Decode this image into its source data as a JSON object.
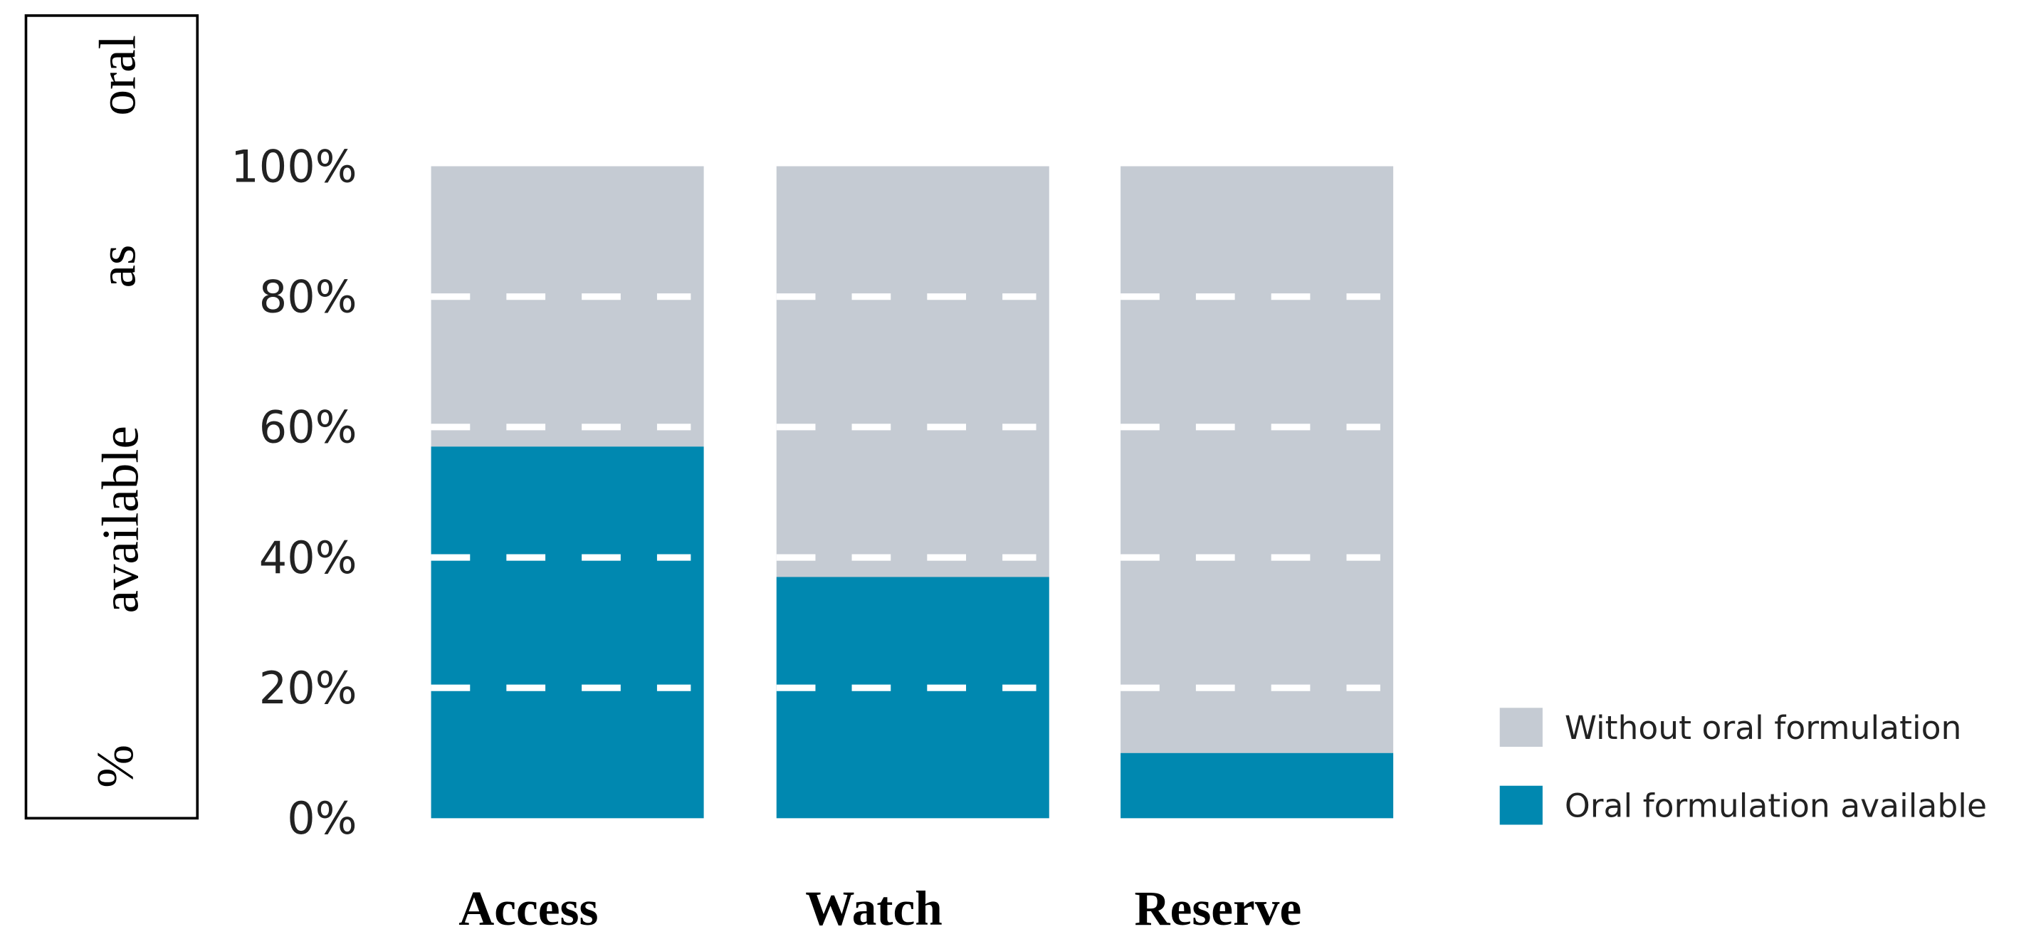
{
  "chart_data": {
    "type": "bar",
    "stacked": true,
    "categories": [
      "Access",
      "Watch",
      "Reserve"
    ],
    "series": [
      {
        "name": "Oral formulation available",
        "values": [
          57,
          37,
          10
        ],
        "color": "#0088b0"
      },
      {
        "name": "Without oral formulation",
        "values": [
          43,
          63,
          90
        ],
        "color": "#c5cbd3"
      }
    ],
    "ylabel_words": [
      "%",
      "available",
      "as",
      "oral"
    ],
    "ylim": [
      0,
      100
    ],
    "yticks": [
      "0%",
      "20%",
      "40%",
      "60%",
      "80%",
      "100%"
    ],
    "gridlines": "dashed white at 20%, 40%, 60%, 80%",
    "legend": {
      "position": "bottom-right",
      "entries": [
        "Without oral formulation",
        "Oral formulation available"
      ]
    }
  }
}
